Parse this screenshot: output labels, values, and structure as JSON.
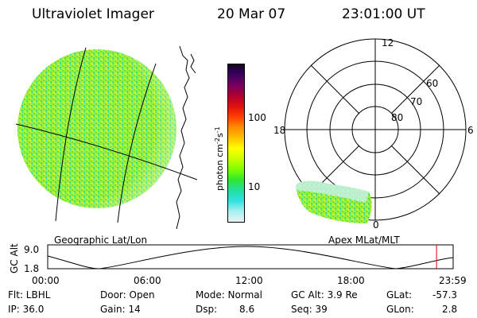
{
  "header": {
    "instrument": "Ultraviolet Imager",
    "date": "20 Mar 07",
    "time": "23:01:00 UT"
  },
  "panels": {
    "geo_label": "Geographic Lat/Lon",
    "apex_label": "Apex MLat/MLT"
  },
  "colorbar": {
    "unit_label_main": "photon cm",
    "unit_exp1": "-2",
    "unit_s": "s",
    "unit_exp2": "-1",
    "ticks": [
      "100",
      "10"
    ],
    "colors": [
      "#1a0026",
      "#3a0060",
      "#7a0060",
      "#b00030",
      "#e01010",
      "#ff4000",
      "#ff8c00",
      "#ffc000",
      "#ffff00",
      "#c8ff00",
      "#80ff00",
      "#30e830",
      "#20e0a0",
      "#30e0e0",
      "#a8f0f0",
      "#e8f4f4"
    ]
  },
  "polar": {
    "lat_labels": [
      "60",
      "70",
      "80"
    ],
    "mlt_labels": {
      "top": "12",
      "left": "18",
      "right": "6",
      "bottom": "0"
    }
  },
  "altitude_plot": {
    "ylabel": "GC Alt",
    "yticks": [
      "9.0",
      "1.8"
    ],
    "xticks": [
      "00:00",
      "06:00",
      "12:00",
      "18:00",
      "23:59"
    ],
    "marker_color": "#e00000",
    "marker_time_fraction": 0.959
  },
  "status": {
    "flt": "Flt: LBHL",
    "ip": "IP: 36.0",
    "door": "Door: Open",
    "gain": "Gain: 14",
    "mode": "Mode: Normal",
    "dsp_label": "Dsp:",
    "dsp_value": "8.6",
    "gcalt": "GC Alt: 3.9 Re",
    "seq": "Seq: 39",
    "glat_label": "GLat:",
    "glat_value": "-57.3",
    "glon_label": "GLon:",
    "glon_value": "2.8"
  }
}
